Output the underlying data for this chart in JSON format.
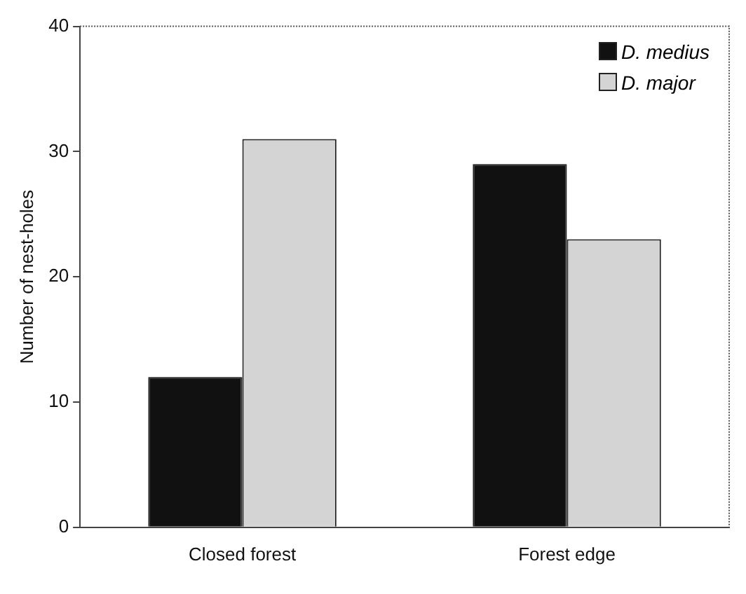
{
  "chart_data": {
    "type": "bar",
    "ylabel": "Number of nest-holes",
    "categories": [
      "Closed forest",
      "Forest edge"
    ],
    "series": [
      {
        "name": "D. medius",
        "color": "#111111",
        "values": [
          12,
          29
        ]
      },
      {
        "name": "D. major",
        "color": "#d4d4d4",
        "values": [
          31,
          23
        ]
      }
    ],
    "ylim": [
      0,
      40
    ],
    "yticks": [
      0,
      10,
      20,
      30,
      40
    ],
    "grid": false,
    "legend": "top right"
  }
}
